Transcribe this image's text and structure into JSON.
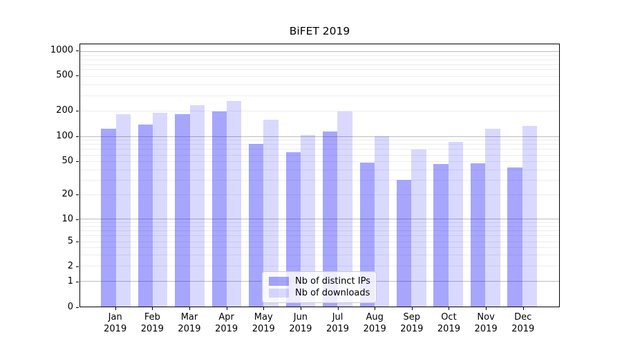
{
  "figure": {
    "background": "#ffffff"
  },
  "chart_data": {
    "type": "bar",
    "title": "BiFET 2019",
    "xlabel": "",
    "ylabel": "",
    "grid": true,
    "categories": [
      "Jan 2019",
      "Feb 2019",
      "Mar 2019",
      "Apr 2019",
      "May 2019",
      "Jun 2019",
      "Jul 2019",
      "Aug 2019",
      "Sep 2019",
      "Oct 2019",
      "Nov 2019",
      "Dec 2019"
    ],
    "series": [
      {
        "name": "Nb of distinct IPs",
        "color": "#0000ff59",
        "values": [
          122,
          139,
          185,
          200,
          81,
          64,
          113,
          48,
          30,
          46,
          47,
          42
        ]
      },
      {
        "name": "Nb of downloads",
        "color": "#0000ff26",
        "values": [
          182,
          190,
          235,
          260,
          157,
          104,
          197,
          100,
          70,
          85,
          122,
          132
        ]
      }
    ],
    "y_axis": {
      "scale": "asinh-log",
      "tick_labels": [
        "1000",
        "500",
        "200",
        "100",
        "50",
        "20",
        "10",
        "5",
        "2",
        "1",
        "0"
      ],
      "tick_values": [
        1000,
        500,
        200,
        100,
        50,
        20,
        10,
        5,
        2,
        1,
        0
      ],
      "major_gridlines": [
        1,
        10,
        100,
        1000
      ],
      "anchors": [
        [
          0,
          1.0
        ],
        [
          1,
          0.9021
        ],
        [
          2,
          0.8451
        ],
        [
          5,
          0.7507
        ],
        [
          10,
          0.6654
        ],
        [
          20,
          0.5722
        ],
        [
          50,
          0.4462
        ],
        [
          100,
          0.3504
        ],
        [
          200,
          0.2546
        ],
        [
          500,
          0.1207
        ],
        [
          1000,
          0.027
        ]
      ]
    },
    "legend": {
      "position": "lower center",
      "entries": [
        "Nb of distinct IPs",
        "Nb of downloads"
      ]
    }
  },
  "colors": {
    "bar_dark_over_white": "#a6a6f7",
    "bar_light_over_white": "#d9d9f9",
    "major_grid": "#bdbdbd",
    "minor_grid": "#ededed",
    "axis": "#000000",
    "legend_border": "#cccccc"
  }
}
